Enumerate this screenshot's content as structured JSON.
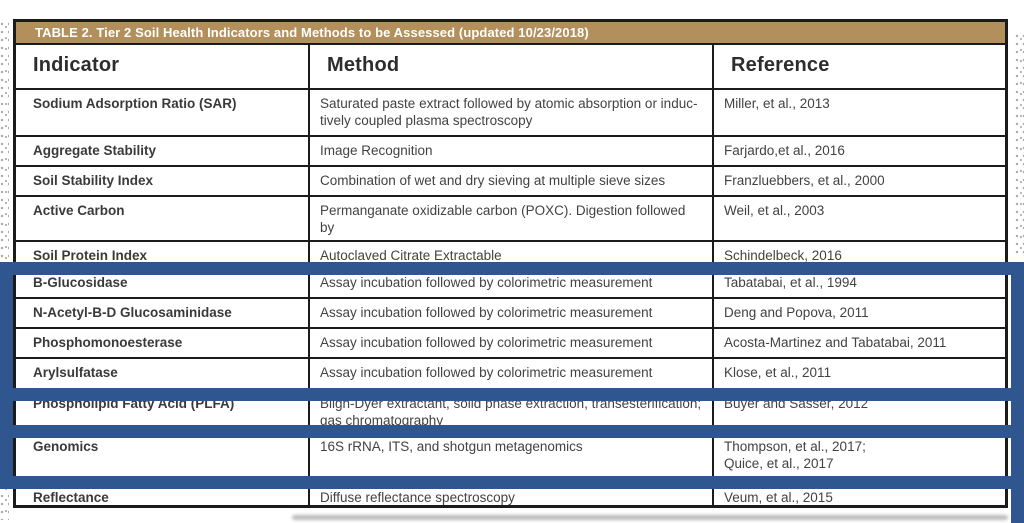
{
  "table": {
    "title": "TABLE 2. Tier 2 Soil Health Indicators and Methods to be Assessed (updated 10/23/2018)",
    "columns": [
      {
        "label": "Indicator"
      },
      {
        "label": "Method"
      },
      {
        "label": "Reference"
      }
    ],
    "rows": [
      {
        "indicator": "Sodium Adsorption Ratio (SAR)",
        "method": "Saturated paste extract followed by atomic absorption or induc-\ntively coupled plasma spectroscopy",
        "reference": "Miller, et al., 2013"
      },
      {
        "indicator": "Aggregate Stability",
        "method": "Image Recognition",
        "reference": "Farjardo,et al., 2016"
      },
      {
        "indicator": "Soil Stability Index",
        "method": "Combination of wet and dry sieving at multiple sieve sizes",
        "reference": "Franzluebbers, et al., 2000"
      },
      {
        "indicator": "Active Carbon",
        "method": "Permanganate oxidizable carbon (POXC). Digestion followed by\ncolorimetric measurement",
        "reference": "Weil, et al., 2003"
      },
      {
        "indicator": "Soil Protein Index",
        "method": "Autoclaved Citrate Extractable",
        "reference": "Schindelbeck, 2016"
      },
      {
        "indicator": "B-Glucosidase",
        "method": "Assay incubation followed by colorimetric measurement",
        "reference": "Tabatabai, et al., 1994"
      },
      {
        "indicator": "N-Acetyl-B-D Glucosaminidase",
        "method": "Assay incubation followed by colorimetric measurement",
        "reference": "Deng and Popova, 2011"
      },
      {
        "indicator": "Phosphomonoesterase",
        "method": "Assay incubation followed by colorimetric measurement",
        "reference": "Acosta-Martinez and Tabatabai, 2011"
      },
      {
        "indicator": "Arylsulfatase",
        "method": "Assay incubation followed by colorimetric measurement",
        "reference": "Klose, et al., 2011"
      },
      {
        "indicator": "Phospholipid Fatty Acid (PLFA)",
        "method": "Bligh-Dyer extractant, solid phase extraction, transesterification;\ngas chromatography",
        "reference": "Buyer and Sasser, 2012"
      },
      {
        "indicator": "Genomics",
        "method": "16S rRNA, ITS, and shotgun metagenomics",
        "reference": "Thompson, et al., 2017;\nQuice, et al., 2017"
      },
      {
        "indicator": "Reflectance",
        "method": "Diffuse reflectance spectroscopy",
        "reference": "Veum, et al., 2015"
      }
    ]
  },
  "annotations": {
    "highlight_groups": [
      [
        "B-Glucosidase",
        "N-Acetyl-B-D Glucosaminidase",
        "Phosphomonoesterase",
        "Arylsulfatase"
      ],
      [
        "Phospholipid Fatty Acid (PLFA)"
      ],
      [
        "Genomics"
      ]
    ]
  },
  "colors": {
    "title_bar": "#b28f5b",
    "highlight": "#30568f",
    "table_border": "#1b1b1b"
  }
}
